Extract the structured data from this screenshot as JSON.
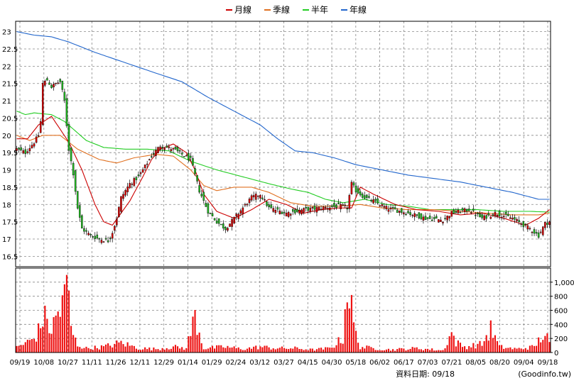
{
  "chart_data": {
    "type": "candlestick",
    "legend": [
      {
        "name": "月線",
        "color": "#cc0000"
      },
      {
        "name": "季線",
        "color": "#e07020"
      },
      {
        "name": "半年",
        "color": "#22cc22"
      },
      {
        "name": "年線",
        "color": "#2266cc"
      }
    ],
    "price_axis": {
      "ylim": [
        16.2,
        23.3
      ],
      "ticks": [
        "23",
        "22.5",
        "22",
        "21.5",
        "21",
        "20.5",
        "20",
        "19.5",
        "19",
        "18.5",
        "18",
        "17.5",
        "17",
        "16.5"
      ],
      "tick_values": [
        23,
        22.5,
        22,
        21.5,
        21,
        20.5,
        20,
        19.5,
        19,
        18.5,
        18,
        17.5,
        17,
        16.5
      ]
    },
    "volume_axis": {
      "ylim": [
        0,
        1200
      ],
      "ticks": [
        "1,000",
        "800",
        "600",
        "400",
        "200",
        "0"
      ],
      "tick_values": [
        1000,
        800,
        600,
        400,
        200,
        0
      ]
    },
    "x_labels": [
      "09/19",
      "10/08",
      "10/27",
      "11/11",
      "11/26",
      "12/11",
      "12/29",
      "01/14",
      "01/29",
      "02/24",
      "03/12",
      "03/27",
      "04/15",
      "04/30",
      "05/18",
      "06/02",
      "06/17",
      "07/03",
      "07/21",
      "08/05",
      "08/20",
      "09/04",
      "09/18"
    ],
    "bar_count": 246,
    "month_line_anchors": [
      [
        0,
        19.9
      ],
      [
        5,
        19.9
      ],
      [
        10,
        20.3
      ],
      [
        16,
        20.55
      ],
      [
        24,
        19.8
      ],
      [
        30,
        19.0
      ],
      [
        36,
        18.0
      ],
      [
        40,
        17.5
      ],
      [
        44,
        17.4
      ],
      [
        52,
        18.1
      ],
      [
        58,
        18.8
      ],
      [
        62,
        19.3
      ],
      [
        66,
        19.6
      ],
      [
        72,
        19.75
      ],
      [
        78,
        19.5
      ],
      [
        82,
        19.0
      ],
      [
        86,
        18.3
      ],
      [
        92,
        17.8
      ],
      [
        100,
        17.6
      ],
      [
        108,
        17.85
      ],
      [
        116,
        18.15
      ],
      [
        124,
        18.0
      ],
      [
        132,
        17.75
      ],
      [
        140,
        17.85
      ],
      [
        148,
        17.9
      ],
      [
        154,
        17.9
      ],
      [
        158,
        18.5
      ],
      [
        164,
        18.3
      ],
      [
        174,
        18.0
      ],
      [
        184,
        17.85
      ],
      [
        194,
        17.8
      ],
      [
        204,
        17.7
      ],
      [
        214,
        17.75
      ],
      [
        224,
        17.6
      ],
      [
        234,
        17.4
      ],
      [
        240,
        17.6
      ],
      [
        245,
        17.85
      ]
    ],
    "quarter_line_anchors": [
      [
        0,
        20.0
      ],
      [
        6,
        19.85
      ],
      [
        12,
        20.0
      ],
      [
        20,
        20.0
      ],
      [
        28,
        19.6
      ],
      [
        38,
        19.3
      ],
      [
        46,
        19.2
      ],
      [
        54,
        19.35
      ],
      [
        64,
        19.45
      ],
      [
        72,
        19.4
      ],
      [
        80,
        19.0
      ],
      [
        86,
        18.55
      ],
      [
        92,
        18.4
      ],
      [
        100,
        18.5
      ],
      [
        108,
        18.5
      ],
      [
        116,
        18.35
      ],
      [
        126,
        18.05
      ],
      [
        136,
        17.95
      ],
      [
        148,
        17.95
      ],
      [
        158,
        18.0
      ],
      [
        168,
        17.9
      ],
      [
        180,
        17.85
      ],
      [
        192,
        17.85
      ],
      [
        204,
        17.8
      ],
      [
        216,
        17.75
      ],
      [
        228,
        17.7
      ],
      [
        240,
        17.7
      ],
      [
        245,
        17.75
      ]
    ],
    "halfyear_line_anchors": [
      [
        0,
        20.7
      ],
      [
        4,
        20.6
      ],
      [
        8,
        20.65
      ],
      [
        16,
        20.6
      ],
      [
        22,
        20.4
      ],
      [
        32,
        19.85
      ],
      [
        40,
        19.65
      ],
      [
        50,
        19.6
      ],
      [
        60,
        19.6
      ],
      [
        70,
        19.55
      ],
      [
        80,
        19.25
      ],
      [
        92,
        19.0
      ],
      [
        104,
        18.8
      ],
      [
        116,
        18.6
      ],
      [
        126,
        18.45
      ],
      [
        134,
        18.35
      ],
      [
        142,
        18.15
      ],
      [
        150,
        18.05
      ],
      [
        160,
        18.15
      ],
      [
        170,
        18.0
      ],
      [
        180,
        17.95
      ],
      [
        190,
        17.85
      ],
      [
        200,
        17.85
      ],
      [
        212,
        17.85
      ],
      [
        224,
        17.8
      ],
      [
        236,
        17.8
      ],
      [
        245,
        17.78
      ]
    ],
    "year_line_anchors": [
      [
        0,
        23.0
      ],
      [
        8,
        22.9
      ],
      [
        16,
        22.85
      ],
      [
        24,
        22.7
      ],
      [
        36,
        22.4
      ],
      [
        50,
        22.1
      ],
      [
        64,
        21.8
      ],
      [
        76,
        21.55
      ],
      [
        88,
        21.1
      ],
      [
        100,
        20.7
      ],
      [
        112,
        20.3
      ],
      [
        120,
        19.9
      ],
      [
        128,
        19.55
      ],
      [
        136,
        19.5
      ],
      [
        146,
        19.35
      ],
      [
        156,
        19.15
      ],
      [
        168,
        19.0
      ],
      [
        180,
        18.85
      ],
      [
        192,
        18.75
      ],
      [
        204,
        18.65
      ],
      [
        216,
        18.5
      ],
      [
        228,
        18.35
      ],
      [
        240,
        18.15
      ],
      [
        245,
        18.15
      ]
    ],
    "close_anchors": [
      [
        0,
        19.6
      ],
      [
        4,
        19.5
      ],
      [
        8,
        19.8
      ],
      [
        10,
        20.0
      ],
      [
        11,
        20.4
      ],
      [
        12,
        21.5
      ],
      [
        14,
        21.6
      ],
      [
        16,
        21.4
      ],
      [
        18,
        21.5
      ],
      [
        20,
        21.55
      ],
      [
        22,
        21.0
      ],
      [
        24,
        19.6
      ],
      [
        26,
        18.9
      ],
      [
        28,
        17.9
      ],
      [
        30,
        17.3
      ],
      [
        34,
        17.1
      ],
      [
        38,
        17.0
      ],
      [
        42,
        16.95
      ],
      [
        44,
        17.2
      ],
      [
        46,
        17.6
      ],
      [
        48,
        18.2
      ],
      [
        52,
        18.6
      ],
      [
        56,
        18.8
      ],
      [
        62,
        19.4
      ],
      [
        66,
        19.7
      ],
      [
        72,
        19.6
      ],
      [
        80,
        19.3
      ],
      [
        84,
        18.4
      ],
      [
        88,
        17.8
      ],
      [
        92,
        17.5
      ],
      [
        96,
        17.3
      ],
      [
        100,
        17.6
      ],
      [
        104,
        17.9
      ],
      [
        108,
        18.2
      ],
      [
        112,
        18.3
      ],
      [
        116,
        17.9
      ],
      [
        124,
        17.75
      ],
      [
        132,
        17.85
      ],
      [
        140,
        17.9
      ],
      [
        148,
        17.95
      ],
      [
        150,
        17.95
      ],
      [
        152,
        17.9
      ],
      [
        154,
        18.6
      ],
      [
        156,
        18.4
      ],
      [
        160,
        18.2
      ],
      [
        164,
        18.1
      ],
      [
        170,
        17.9
      ],
      [
        180,
        17.75
      ],
      [
        188,
        17.6
      ],
      [
        196,
        17.55
      ],
      [
        200,
        17.75
      ],
      [
        208,
        17.85
      ],
      [
        214,
        17.6
      ],
      [
        220,
        17.75
      ],
      [
        228,
        17.6
      ],
      [
        236,
        17.3
      ],
      [
        240,
        17.1
      ],
      [
        243,
        17.45
      ],
      [
        245,
        17.5
      ]
    ],
    "volume_anchors": [
      [
        0,
        80
      ],
      [
        4,
        130
      ],
      [
        8,
        200
      ],
      [
        10,
        300
      ],
      [
        12,
        500
      ],
      [
        14,
        450
      ],
      [
        16,
        300
      ],
      [
        18,
        500
      ],
      [
        20,
        600
      ],
      [
        21,
        800
      ],
      [
        22,
        750
      ],
      [
        23,
        1000
      ],
      [
        24,
        700
      ],
      [
        25,
        400
      ],
      [
        26,
        230
      ],
      [
        28,
        110
      ],
      [
        32,
        60
      ],
      [
        40,
        80
      ],
      [
        48,
        140
      ],
      [
        56,
        60
      ],
      [
        64,
        50
      ],
      [
        72,
        80
      ],
      [
        78,
        60
      ],
      [
        82,
        520
      ],
      [
        86,
        60
      ],
      [
        96,
        80
      ],
      [
        104,
        50
      ],
      [
        112,
        80
      ],
      [
        120,
        60
      ],
      [
        128,
        60
      ],
      [
        136,
        40
      ],
      [
        144,
        60
      ],
      [
        150,
        200
      ],
      [
        151,
        600
      ],
      [
        152,
        1050
      ],
      [
        153,
        750
      ],
      [
        154,
        600
      ],
      [
        156,
        240
      ],
      [
        158,
        80
      ],
      [
        164,
        60
      ],
      [
        172,
        40
      ],
      [
        184,
        60
      ],
      [
        196,
        30
      ],
      [
        200,
        280
      ],
      [
        202,
        140
      ],
      [
        206,
        80
      ],
      [
        214,
        120
      ],
      [
        218,
        330
      ],
      [
        222,
        80
      ],
      [
        230,
        50
      ],
      [
        238,
        80
      ],
      [
        242,
        250
      ],
      [
        244,
        200
      ],
      [
        245,
        120
      ]
    ]
  },
  "footer": {
    "label": "資料日期: 09/18",
    "source": "(Goodinfo.tw)"
  },
  "colors": {
    "up": "#dd0000",
    "down": "#22bb22",
    "volume": "#ee1111",
    "grid": "#888888",
    "frame": "#000000"
  }
}
